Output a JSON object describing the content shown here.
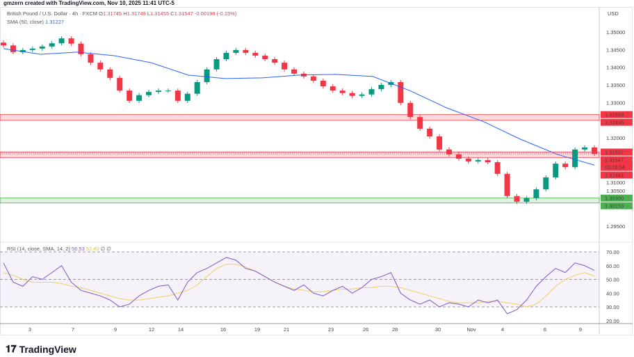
{
  "credit": "gmzern created with TradingView.com, Nov 10, 2025 11:41 UTC-5",
  "legend": {
    "symbol": "British Pound / U.S. Dollar · 4h · FXCM",
    "o_label": "O",
    "o": "1.31745",
    "h_label": "H",
    "h": "1.31749",
    "l_label": "L",
    "l": "1.31455",
    "c_label": "C",
    "c": "1.31547",
    "change": "-0.00198 (-0.15%)",
    "sma_label": "SMA (50, close)",
    "sma_value": "1.31227"
  },
  "rsi_legend": {
    "label": "RSI (14, close, SMA, 14, 2)",
    "rsi": "56.53",
    "sma": "52.40",
    "extra": "∅ ∅"
  },
  "currency": "USD",
  "logo": "TradingView",
  "colors": {
    "up": "#089981",
    "down": "#f23645",
    "sma": "#2962ff",
    "rsi": "#7e57c2",
    "rsi_sma": "#f0d060",
    "resistance": "#f23645",
    "support": "#4caf50"
  },
  "chart_data": [
    {
      "type": "candlestick",
      "ylim": [
        1.293,
        1.3535
      ],
      "price_ticks": [
        "1.35000",
        "1.34500",
        "1.34000",
        "1.33500",
        "1.33000",
        "1.32000",
        "1.31000",
        "1.30500",
        "1.29500"
      ],
      "x_ticks": [
        "3",
        "7",
        "9",
        "12",
        "14",
        "16",
        "19",
        "21",
        "23",
        "26",
        "28",
        "30",
        "Nov",
        "4",
        "6",
        "9"
      ],
      "closes": [
        1.3462,
        1.3443,
        1.3449,
        1.3453,
        1.3459,
        1.3468,
        1.3482,
        1.3467,
        1.3437,
        1.3413,
        1.3394,
        1.337,
        1.3334,
        1.3305,
        1.3321,
        1.333,
        1.3334,
        1.3334,
        1.3305,
        1.3325,
        1.3358,
        1.3394,
        1.3423,
        1.3441,
        1.3449,
        1.3441,
        1.3433,
        1.3423,
        1.3413,
        1.3394,
        1.3382,
        1.3374,
        1.3362,
        1.3346,
        1.3334,
        1.3327,
        1.3319,
        1.3323,
        1.3338,
        1.335,
        1.3358,
        1.3299,
        1.3259,
        1.3226,
        1.3204,
        1.3167,
        1.3153,
        1.3141,
        1.3133,
        1.3137,
        1.3131,
        1.3098,
        1.3035,
        1.3019,
        1.3029,
        1.3054,
        1.3088,
        1.3127,
        1.3117,
        1.3167,
        1.3173,
        1.31547
      ],
      "sma": [
        1.3453,
        1.3437,
        1.3443,
        1.3433,
        1.3413,
        1.3378,
        1.3368,
        1.337,
        1.3378,
        1.338,
        1.3374,
        1.3334,
        1.3285,
        1.3246,
        1.3196,
        1.3153,
        1.31227
      ],
      "zones": [
        {
          "top": 1.32659,
          "bottom": 1.32496,
          "kind": "resistance"
        },
        {
          "top": 1.31597,
          "bottom": 1.31444,
          "kind": "resistance"
        },
        {
          "top": 1.303,
          "bottom": 1.30153,
          "kind": "support"
        }
      ],
      "last_price": "1.31547",
      "countdown": "01:18:54"
    },
    {
      "type": "line",
      "name": "RSI (14, close, SMA, 14, 2)",
      "ylim": [
        17,
        75
      ],
      "ticks": [
        "70.00",
        "60.00",
        "50.00",
        "40.00",
        "30.00",
        "20.00"
      ],
      "rsi": [
        62,
        48,
        45,
        52,
        50,
        55,
        60,
        48,
        42,
        40,
        38,
        35,
        30,
        32,
        38,
        42,
        45,
        46,
        35,
        48,
        55,
        58,
        62,
        66,
        64,
        58,
        56,
        52,
        48,
        45,
        42,
        46,
        40,
        38,
        42,
        45,
        40,
        44,
        50,
        52,
        55,
        40,
        35,
        32,
        35,
        30,
        33,
        32,
        30,
        35,
        33,
        35,
        25,
        28,
        35,
        45,
        52,
        58,
        55,
        62,
        60,
        56.53
      ],
      "rsi_sma": [
        55,
        53,
        50,
        48,
        48,
        48,
        47,
        45,
        44,
        42,
        40,
        38,
        36,
        35,
        35,
        36,
        37,
        38,
        40,
        42,
        46,
        52,
        58,
        61,
        61,
        59,
        56,
        52,
        48,
        45,
        43,
        42,
        41,
        41,
        42,
        43,
        43,
        44,
        44,
        45,
        45,
        44,
        42,
        40,
        38,
        36,
        34,
        33,
        33,
        33,
        34,
        34,
        33,
        32,
        30,
        32,
        38,
        45,
        50,
        53,
        55,
        52.4
      ]
    }
  ]
}
